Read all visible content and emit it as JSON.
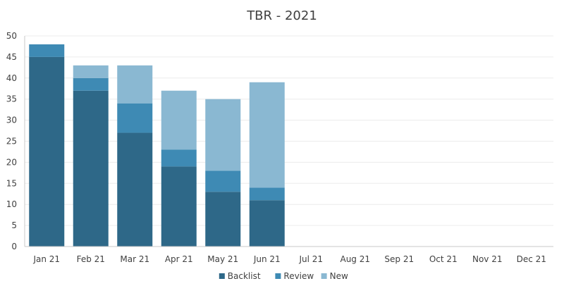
{
  "chart_data": {
    "type": "bar",
    "stacked": true,
    "title": "TBR - 2021",
    "xlabel": "",
    "ylabel": "",
    "categories": [
      "Jan 21",
      "Feb 21",
      "Mar 21",
      "Apr 21",
      "May 21",
      "Jun 21",
      "Jul 21",
      "Aug 21",
      "Sep 21",
      "Oct 21",
      "Nov 21",
      "Dec 21"
    ],
    "ylim": [
      0,
      50
    ],
    "yticks": [
      0,
      5,
      10,
      15,
      20,
      25,
      30,
      35,
      40,
      45,
      50
    ],
    "grid": true,
    "legend_position": "bottom",
    "series": [
      {
        "name": "Backlist",
        "color": "#2e6888",
        "values": [
          45,
          37,
          27,
          19,
          13,
          11,
          null,
          null,
          null,
          null,
          null,
          null
        ]
      },
      {
        "name": "Review",
        "color": "#3e8ab4",
        "values": [
          3,
          3,
          7,
          4,
          5,
          3,
          null,
          null,
          null,
          null,
          null,
          null
        ]
      },
      {
        "name": "New",
        "color": "#8ab8d2",
        "values": [
          0,
          3,
          9,
          14,
          17,
          25,
          null,
          null,
          null,
          null,
          null,
          null
        ]
      }
    ]
  }
}
